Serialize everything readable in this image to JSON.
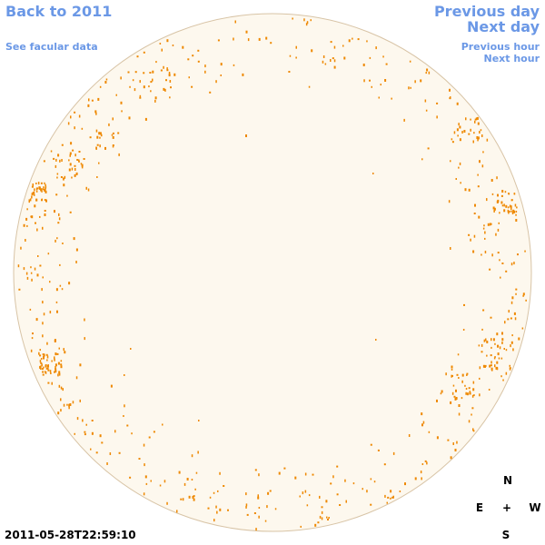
{
  "nav": {
    "back": "Back to 2011",
    "facular": "See facular data",
    "prev_day": "Previous day",
    "next_day": "Next day",
    "prev_hour": "Previous hour",
    "next_hour": "Next hour"
  },
  "timestamp": "2011-05-28T22:59:10",
  "compass": {
    "north": "N",
    "east": "E",
    "center": "+",
    "west": "W",
    "south": "S"
  },
  "colors": {
    "link": "#6b98e6",
    "disk_fill": "#fdf8ee",
    "disk_edge": "#d8c4a6",
    "facula": "#ee8800"
  }
}
